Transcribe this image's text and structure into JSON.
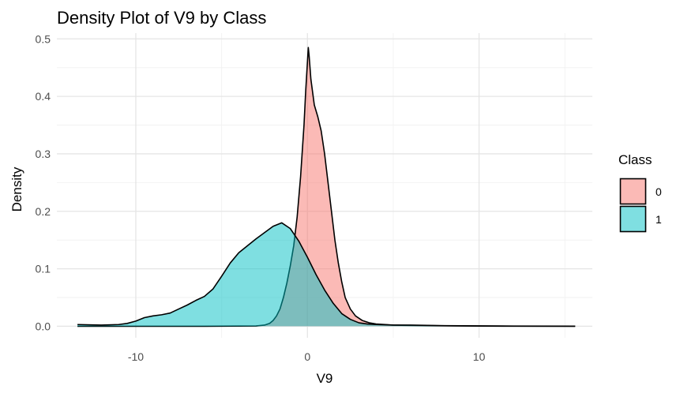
{
  "chart_data": {
    "type": "area",
    "title": "Density Plot of V9 by Class",
    "xlabel": "V9",
    "ylabel": "Density",
    "xlim": [
      -14.6,
      16.6
    ],
    "ylim": [
      -0.02,
      0.51
    ],
    "x_ticks": [
      -10,
      0,
      10
    ],
    "x_tick_labels": [
      "-10",
      "0",
      "10"
    ],
    "y_ticks": [
      0.0,
      0.1,
      0.2,
      0.3,
      0.4,
      0.5
    ],
    "y_tick_labels": [
      "0.0",
      "0.1",
      "0.2",
      "0.3",
      "0.4",
      "0.5"
    ],
    "grid": true,
    "legend": {
      "title": "Class",
      "position": "right"
    },
    "series": [
      {
        "name": "0",
        "color": "#F8766D",
        "fill_opacity": 0.5,
        "points": [
          [
            -13.4,
            0.0
          ],
          [
            -6.0,
            0.0
          ],
          [
            -3.0,
            0.0005
          ],
          [
            -2.5,
            0.002
          ],
          [
            -2.2,
            0.005
          ],
          [
            -2.0,
            0.01
          ],
          [
            -1.8,
            0.018
          ],
          [
            -1.6,
            0.03
          ],
          [
            -1.4,
            0.05
          ],
          [
            -1.2,
            0.075
          ],
          [
            -1.0,
            0.105
          ],
          [
            -0.8,
            0.14
          ],
          [
            -0.6,
            0.19
          ],
          [
            -0.4,
            0.26
          ],
          [
            -0.2,
            0.35
          ],
          [
            -0.1,
            0.41
          ],
          [
            0.0,
            0.46
          ],
          [
            0.05,
            0.485
          ],
          [
            0.1,
            0.47
          ],
          [
            0.2,
            0.43
          ],
          [
            0.4,
            0.385
          ],
          [
            0.6,
            0.365
          ],
          [
            0.8,
            0.34
          ],
          [
            1.0,
            0.3
          ],
          [
            1.2,
            0.25
          ],
          [
            1.4,
            0.2
          ],
          [
            1.6,
            0.15
          ],
          [
            1.8,
            0.11
          ],
          [
            2.0,
            0.077
          ],
          [
            2.2,
            0.05
          ],
          [
            2.5,
            0.03
          ],
          [
            2.8,
            0.018
          ],
          [
            3.2,
            0.01
          ],
          [
            3.6,
            0.006
          ],
          [
            4.0,
            0.004
          ],
          [
            5.0,
            0.002
          ],
          [
            7.0,
            0.001
          ],
          [
            10.0,
            0.0003
          ],
          [
            15.6,
            0.0
          ]
        ]
      },
      {
        "name": "1",
        "color": "#00BFC4",
        "fill_opacity": 0.5,
        "points": [
          [
            -13.4,
            0.003
          ],
          [
            -12.0,
            0.002
          ],
          [
            -11.0,
            0.003
          ],
          [
            -10.5,
            0.005
          ],
          [
            -10.0,
            0.009
          ],
          [
            -9.5,
            0.015
          ],
          [
            -9.0,
            0.018
          ],
          [
            -8.5,
            0.02
          ],
          [
            -8.0,
            0.023
          ],
          [
            -7.5,
            0.03
          ],
          [
            -7.0,
            0.037
          ],
          [
            -6.5,
            0.045
          ],
          [
            -6.0,
            0.052
          ],
          [
            -5.5,
            0.065
          ],
          [
            -5.0,
            0.087
          ],
          [
            -4.5,
            0.11
          ],
          [
            -4.0,
            0.128
          ],
          [
            -3.5,
            0.14
          ],
          [
            -3.0,
            0.152
          ],
          [
            -2.5,
            0.163
          ],
          [
            -2.0,
            0.174
          ],
          [
            -1.5,
            0.18
          ],
          [
            -1.0,
            0.17
          ],
          [
            -0.5,
            0.148
          ],
          [
            0.0,
            0.12
          ],
          [
            0.5,
            0.09
          ],
          [
            1.0,
            0.063
          ],
          [
            1.5,
            0.04
          ],
          [
            2.0,
            0.022
          ],
          [
            2.5,
            0.012
          ],
          [
            3.0,
            0.006
          ],
          [
            3.5,
            0.004
          ],
          [
            4.0,
            0.003
          ],
          [
            5.0,
            0.002
          ],
          [
            6.0,
            0.002
          ],
          [
            7.0,
            0.0015
          ],
          [
            8.0,
            0.001
          ],
          [
            10.0,
            0.0007
          ],
          [
            12.0,
            0.0004
          ],
          [
            15.6,
            0.0002
          ]
        ]
      }
    ]
  }
}
